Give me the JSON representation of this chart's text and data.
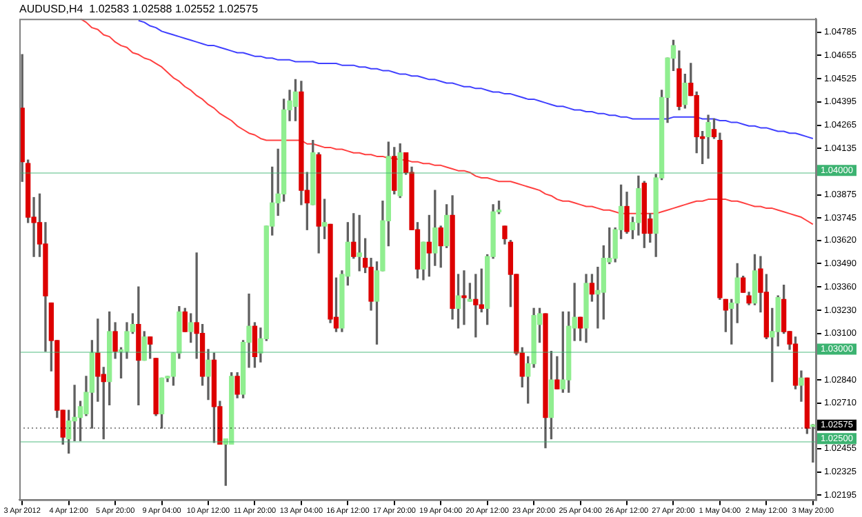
{
  "chart_data": {
    "type": "candlestick",
    "title": "AUDUSD,H4  1.02583 1.02588 1.02552 1.02575",
    "categories": [
      "3 Apr 2012",
      null,
      null,
      null,
      null,
      null,
      null,
      null,
      "4 Apr 12:00",
      null,
      null,
      null,
      null,
      null,
      null,
      null,
      "5 Apr 20:00",
      null,
      null,
      null,
      null,
      null,
      null,
      null,
      "9 Apr 04:00",
      null,
      null,
      null,
      null,
      null,
      null,
      null,
      "10 Apr 12:00",
      null,
      null,
      null,
      null,
      null,
      null,
      null,
      "11 Apr 20:00",
      null,
      null,
      null,
      null,
      null,
      null,
      null,
      "13 Apr 04:00",
      null,
      null,
      null,
      null,
      null,
      null,
      null,
      "16 Apr 12:00",
      null,
      null,
      null,
      null,
      null,
      null,
      null,
      "17 Apr 20:00",
      null,
      null,
      null,
      null,
      null,
      null,
      null,
      "19 Apr 04:00",
      null,
      null,
      null,
      null,
      null,
      null,
      null,
      "20 Apr 12:00",
      null,
      null,
      null,
      null,
      null,
      null,
      null,
      "23 Apr 20:00",
      null,
      null,
      null,
      null,
      null,
      null,
      null,
      "25 Apr 04:00",
      null,
      null,
      null,
      null,
      null,
      null,
      null,
      "26 Apr 12:00",
      null,
      null,
      null,
      null,
      null,
      null,
      null,
      "27 Apr 20:00",
      null,
      null,
      null,
      null,
      null,
      null,
      null,
      "1 May 04:00",
      null,
      null,
      null,
      null,
      null,
      null,
      null,
      "2 May 12:00",
      null,
      null,
      null,
      null,
      null,
      null,
      null,
      "3 May 20:00"
    ],
    "ohlc": [
      [
        1.0436,
        1.0466,
        1.0395,
        1.0406
      ],
      [
        1.0405,
        1.0407,
        1.0372,
        1.0375
      ],
      [
        1.0375,
        1.0386,
        1.0353,
        1.0372
      ],
      [
        1.0372,
        1.0388,
        1.0353,
        1.036
      ],
      [
        1.036,
        1.0372,
        1.03,
        1.0331
      ],
      [
        1.0327,
        1.0327,
        1.0289,
        1.0306
      ],
      [
        1.0306,
        1.0306,
        1.0263,
        1.0267
      ],
      [
        1.0267,
        1.0267,
        1.0248,
        1.0252
      ],
      [
        1.0251,
        1.0267,
        1.0243,
        1.0261
      ],
      [
        1.0261,
        1.0281,
        1.025,
        1.0263
      ],
      [
        1.0263,
        1.0272,
        1.025,
        1.0269
      ],
      [
        1.0265,
        1.0286,
        1.0264,
        1.0277
      ],
      [
        1.0277,
        1.0306,
        1.0257,
        1.0299
      ],
      [
        1.0299,
        1.0318,
        1.0272,
        1.0286
      ],
      [
        1.0287,
        1.0291,
        1.0251,
        1.0283
      ],
      [
        1.0283,
        1.0322,
        1.027,
        1.0311
      ],
      [
        1.0311,
        1.0316,
        1.0296,
        1.03
      ],
      [
        1.03,
        1.0302,
        1.0285,
        1.03
      ],
      [
        1.03,
        1.0316,
        1.0296,
        1.0311
      ],
      [
        1.0311,
        1.0321,
        1.031,
        1.0315
      ],
      [
        1.0315,
        1.0336,
        1.027,
        1.0295
      ],
      [
        1.0295,
        1.0311,
        1.0295,
        1.0308
      ],
      [
        1.0308,
        1.0308,
        1.0296,
        1.0304
      ],
      [
        1.0296,
        1.0296,
        1.0264,
        1.0265
      ],
      [
        1.0265,
        1.0285,
        1.0257,
        1.0285
      ],
      [
        1.0285,
        1.0286,
        1.0283,
        1.0286
      ],
      [
        1.0286,
        1.0299,
        1.0281,
        1.0299
      ],
      [
        1.0299,
        1.0325,
        1.0296,
        1.0322
      ],
      [
        1.0322,
        1.0324,
        1.0311,
        1.0311
      ],
      [
        1.0311,
        1.0321,
        1.0305,
        1.0316
      ],
      [
        1.0316,
        1.0355,
        1.0296,
        1.031
      ],
      [
        1.031,
        1.0315,
        1.0281,
        1.0286
      ],
      [
        1.0286,
        1.0301,
        1.0273,
        1.0295
      ],
      [
        1.0295,
        1.0299,
        1.0249,
        1.0269
      ],
      [
        1.0269,
        1.0272,
        1.0248,
        1.0248
      ],
      [
        1.0248,
        1.0251,
        1.0225,
        1.0251
      ],
      [
        1.0248,
        1.0288,
        1.0248,
        1.0286
      ],
      [
        1.0286,
        1.0288,
        1.0274,
        1.0276
      ],
      [
        1.0276,
        1.0306,
        1.0274,
        1.0305
      ],
      [
        1.0305,
        1.0332,
        1.0291,
        1.0314
      ],
      [
        1.0314,
        1.0316,
        1.0291,
        1.0297
      ],
      [
        1.0299,
        1.0313,
        1.0294,
        1.0307
      ],
      [
        1.0307,
        1.037,
        1.0306,
        1.037
      ],
      [
        1.037,
        1.0403,
        1.0365,
        1.0383
      ],
      [
        1.0383,
        1.0413,
        1.0376,
        1.0388
      ],
      [
        1.0388,
        1.0441,
        1.0384,
        1.0435
      ],
      [
        1.0435,
        1.0446,
        1.0429,
        1.044
      ],
      [
        1.0437,
        1.0452,
        1.0429,
        1.0445
      ],
      [
        1.0445,
        1.0451,
        1.0382,
        1.039
      ],
      [
        1.039,
        1.04,
        1.0368,
        1.0383
      ],
      [
        1.0382,
        1.0418,
        1.0382,
        1.0411
      ],
      [
        1.041,
        1.0411,
        1.0355,
        1.037
      ],
      [
        1.037,
        1.0385,
        1.0363,
        1.0372
      ],
      [
        1.0371,
        1.0371,
        1.0316,
        1.0318
      ],
      [
        1.0319,
        1.0341,
        1.0311,
        1.0313
      ],
      [
        1.0313,
        1.0345,
        1.0311,
        1.0343
      ],
      [
        1.0342,
        1.0372,
        1.0337,
        1.0361
      ],
      [
        1.0361,
        1.0377,
        1.0352,
        1.0353
      ],
      [
        1.0353,
        1.0376,
        1.0345,
        1.0355
      ],
      [
        1.0352,
        1.0363,
        1.0344,
        1.0347
      ],
      [
        1.0347,
        1.0352,
        1.0323,
        1.0328
      ],
      [
        1.0328,
        1.035,
        1.0304,
        1.0345
      ],
      [
        1.0345,
        1.0384,
        1.0345,
        1.0373
      ],
      [
        1.0373,
        1.0417,
        1.0359,
        1.0409
      ],
      [
        1.0409,
        1.0414,
        1.0388,
        1.039
      ],
      [
        1.0387,
        1.0416,
        1.0386,
        1.0411
      ],
      [
        1.0411,
        1.0411,
        1.0399,
        1.04
      ],
      [
        1.04,
        1.0403,
        1.0368,
        1.0368
      ],
      [
        1.0368,
        1.0372,
        1.0341,
        1.0346
      ],
      [
        1.0346,
        1.0361,
        1.034,
        1.0361
      ],
      [
        1.0361,
        1.0376,
        1.0342,
        1.0355
      ],
      [
        1.0355,
        1.039,
        1.0348,
        1.0369
      ],
      [
        1.0369,
        1.037,
        1.0347,
        1.0359
      ],
      [
        1.0359,
        1.0382,
        1.0358,
        1.0376
      ],
      [
        1.0376,
        1.0387,
        1.0318,
        1.0324
      ],
      [
        1.0324,
        1.0343,
        1.0313,
        1.0331
      ],
      [
        1.0331,
        1.0345,
        1.0315,
        1.033
      ],
      [
        1.0328,
        1.0338,
        1.0328,
        1.0329
      ],
      [
        1.0329,
        1.0343,
        1.0308,
        1.0326
      ],
      [
        1.0326,
        1.0346,
        1.0322,
        1.0324
      ],
      [
        1.0324,
        1.0354,
        1.0315,
        1.0353
      ],
      [
        1.0353,
        1.0382,
        1.0352,
        1.0378
      ],
      [
        1.0378,
        1.0384,
        1.0377,
        1.0379
      ],
      [
        1.037,
        1.037,
        1.036,
        1.0363
      ],
      [
        1.0361,
        1.0362,
        1.0325,
        1.0343
      ],
      [
        1.0343,
        1.0343,
        1.0298,
        1.0299
      ],
      [
        1.0299,
        1.0302,
        1.028,
        1.0286
      ],
      [
        1.0286,
        1.0297,
        1.0271,
        1.0293
      ],
      [
        1.0293,
        1.0324,
        1.0291,
        1.032
      ],
      [
        1.0315,
        1.0324,
        1.0305,
        1.0321
      ],
      [
        1.0321,
        1.0321,
        1.0246,
        1.0263
      ],
      [
        1.0263,
        1.03,
        1.0251,
        1.0284
      ],
      [
        1.0284,
        1.0297,
        1.0279,
        1.0279
      ],
      [
        1.0279,
        1.0322,
        1.0277,
        1.0284
      ],
      [
        1.0284,
        1.0322,
        1.0277,
        1.0314
      ],
      [
        1.0313,
        1.0338,
        1.0306,
        1.0319
      ],
      [
        1.0319,
        1.0319,
        1.0306,
        1.0313
      ],
      [
        1.0313,
        1.0343,
        1.0305,
        1.0338
      ],
      [
        1.0338,
        1.0343,
        1.0328,
        1.0332
      ],
      [
        1.0332,
        1.0347,
        1.0313,
        1.0334
      ],
      [
        1.0333,
        1.0359,
        1.0318,
        1.0352
      ],
      [
        1.035,
        1.0369,
        1.0349,
        1.0352
      ],
      [
        1.0352,
        1.0369,
        1.035,
        1.0368
      ],
      [
        1.0368,
        1.0393,
        1.0363,
        1.0381
      ],
      [
        1.0381,
        1.0389,
        1.0366,
        1.0367
      ],
      [
        1.0368,
        1.0375,
        1.0363,
        1.0372
      ],
      [
        1.0372,
        1.0398,
        1.0365,
        1.0391
      ],
      [
        1.0394,
        1.0395,
        1.0358,
        1.0366
      ],
      [
        1.0374,
        1.0377,
        1.0361,
        1.0366
      ],
      [
        1.0366,
        1.0399,
        1.0353,
        1.0397
      ],
      [
        1.0397,
        1.0446,
        1.0396,
        1.0442
      ],
      [
        1.0442,
        1.0464,
        1.0428,
        1.0464
      ],
      [
        1.0464,
        1.0474,
        1.0457,
        1.0471
      ],
      [
        1.0458,
        1.0468,
        1.0435,
        1.0437
      ],
      [
        1.0438,
        1.0455,
        1.0436,
        1.045
      ],
      [
        1.045,
        1.0461,
        1.0443,
        1.0443
      ],
      [
        1.0443,
        1.0445,
        1.0411,
        1.042
      ],
      [
        1.042,
        1.0423,
        1.0405,
        1.0419
      ],
      [
        1.042,
        1.0432,
        1.0408,
        1.0428
      ],
      [
        1.0424,
        1.043,
        1.0419,
        1.042
      ],
      [
        1.0418,
        1.0422,
        1.0329,
        1.033
      ],
      [
        1.0329,
        1.0329,
        1.0311,
        1.0323
      ],
      [
        1.0324,
        1.0329,
        1.0304,
        1.0327
      ],
      [
        1.0327,
        1.0349,
        1.0316,
        1.0341
      ],
      [
        1.0341,
        1.0342,
        1.0333,
        1.0333
      ],
      [
        1.0331,
        1.0333,
        1.0326,
        1.0327
      ],
      [
        1.0327,
        1.0354,
        1.0326,
        1.0345
      ],
      [
        1.0346,
        1.0353,
        1.0322,
        1.0333
      ],
      [
        1.0333,
        1.0343,
        1.0307,
        1.0308
      ],
      [
        1.0308,
        1.0324,
        1.0283,
        1.0311
      ],
      [
        1.0311,
        1.0331,
        1.0303,
        1.033
      ],
      [
        1.0329,
        1.0337,
        1.031,
        1.0311
      ],
      [
        1.0311,
        1.0311,
        1.0301,
        1.0304
      ],
      [
        1.0304,
        1.0308,
        1.0279,
        1.0281
      ],
      [
        1.0281,
        1.0289,
        1.0272,
        1.0285
      ],
      [
        1.0285,
        1.0285,
        1.0254,
        1.0257
      ],
      [
        1.0258,
        1.0259,
        1.0238,
        1.0258
      ]
    ],
    "colors": [
      "#dd0000",
      "#dd0000",
      "#dd0000",
      "#dd0000",
      "#dd0000",
      "#dd0000",
      "#dd0000",
      "#dd0000",
      "#90ee90",
      "#90ee90",
      "#90ee90",
      "#90ee90",
      "#90ee90",
      "#dd0000",
      "#dd0000",
      "#90ee90",
      "#dd0000",
      "#90ee90",
      "#90ee90",
      "#90ee90",
      "#dd0000",
      "#90ee90",
      "#dd0000",
      "#dd0000",
      "#90ee90",
      "#90ee90",
      "#90ee90",
      "#90ee90",
      "#dd0000",
      "#90ee90",
      "#dd0000",
      "#dd0000",
      "#90ee90",
      "#dd0000",
      "#dd0000",
      "#90ee90",
      "#90ee90",
      "#dd0000",
      "#90ee90",
      "#90ee90",
      "#dd0000",
      "#90ee90",
      "#90ee90",
      "#90ee90",
      "#90ee90",
      "#90ee90",
      "#90ee90",
      "#90ee90",
      "#dd0000",
      "#dd0000",
      "#90ee90",
      "#dd0000",
      "#90ee90",
      "#dd0000",
      "#dd0000",
      "#90ee90",
      "#90ee90",
      "#dd0000",
      "#90ee90",
      "#dd0000",
      "#dd0000",
      "#90ee90",
      "#90ee90",
      "#90ee90",
      "#dd0000",
      "#90ee90",
      "#dd0000",
      "#dd0000",
      "#dd0000",
      "#90ee90",
      "#dd0000",
      "#90ee90",
      "#dd0000",
      "#90ee90",
      "#dd0000",
      "#90ee90",
      "#dd0000",
      "#90ee90",
      "#dd0000",
      "#dd0000",
      "#90ee90",
      "#90ee90",
      "#90ee90",
      "#dd0000",
      "#dd0000",
      "#dd0000",
      "#dd0000",
      "#90ee90",
      "#90ee90",
      "#90ee90",
      "#dd0000",
      "#90ee90",
      "#dd0000",
      "#90ee90",
      "#90ee90",
      "#90ee90",
      "#dd0000",
      "#90ee90",
      "#dd0000",
      "#90ee90",
      "#90ee90",
      "#90ee90",
      "#90ee90",
      "#90ee90",
      "#dd0000",
      "#90ee90",
      "#90ee90",
      "#dd0000",
      "#dd0000",
      "#90ee90",
      "#90ee90",
      "#90ee90",
      "#90ee90",
      "#dd0000",
      "#90ee90",
      "#dd0000",
      "#dd0000",
      "#dd0000",
      "#90ee90",
      "#dd0000",
      "#dd0000",
      "#dd0000",
      "#90ee90",
      "#90ee90",
      "#dd0000",
      "#dd0000",
      "#90ee90",
      "#dd0000",
      "#dd0000",
      "#90ee90",
      "#90ee90",
      "#dd0000",
      "#dd0000",
      "#dd0000",
      "#90ee90",
      "#dd0000",
      "#90ee90"
    ],
    "series": [
      {
        "type": "line",
        "color": "#4040ff",
        "values": [
          null,
          null,
          null,
          null,
          null,
          null,
          null,
          null,
          null,
          null,
          null,
          null,
          null,
          null,
          null,
          null,
          null,
          null,
          null,
          null,
          1.0485,
          1.0484,
          1.0482,
          1.0481,
          1.0479,
          1.0478,
          1.0477,
          1.0476,
          1.0475,
          1.0474,
          1.0473,
          1.0472,
          1.0471,
          1.0471,
          1.047,
          1.0469,
          1.0468,
          1.0467,
          1.0467,
          1.0466,
          1.0465,
          1.0465,
          1.0464,
          1.0464,
          1.0463,
          1.0463,
          1.0463,
          1.0462,
          1.0462,
          1.0462,
          1.0462,
          1.0461,
          1.0461,
          1.0461,
          1.0461,
          1.046,
          1.046,
          1.046,
          1.0459,
          1.0459,
          1.0458,
          1.0458,
          1.0457,
          1.0457,
          1.0456,
          1.0455,
          1.0455,
          1.0454,
          1.0454,
          1.0453,
          1.0452,
          1.0452,
          1.0451,
          1.045,
          1.045,
          1.0449,
          1.0448,
          1.0448,
          1.0447,
          1.0447,
          1.0446,
          1.0445,
          1.0445,
          1.0444,
          1.0444,
          1.0443,
          1.0442,
          1.0441,
          1.0441,
          1.044,
          1.0439,
          1.0438,
          1.0437,
          1.0437,
          1.0436,
          1.0435,
          1.0435,
          1.0434,
          1.0434,
          1.0433,
          1.0433,
          1.0432,
          1.0432,
          1.0431,
          1.0431,
          1.043,
          1.043,
          1.043,
          1.043,
          1.043,
          1.043,
          1.043,
          1.0431,
          1.0431,
          1.0431,
          1.0431,
          1.0431,
          1.043,
          1.043,
          1.043,
          1.0429,
          1.0429,
          1.0428,
          1.0428,
          1.0427,
          1.0426,
          1.0426,
          1.0425,
          1.0425,
          1.0424,
          1.0423,
          1.0423,
          1.0422,
          1.0422,
          1.0421,
          1.042,
          1.0419
        ]
      },
      {
        "type": "line",
        "color": "#ff4040",
        "values": [
          null,
          null,
          null,
          null,
          null,
          null,
          null,
          null,
          null,
          null,
          1.0486,
          1.0484,
          1.0481,
          1.048,
          1.0477,
          1.0476,
          1.0473,
          1.0471,
          1.047,
          1.0467,
          1.0466,
          1.0464,
          1.0463,
          1.0461,
          1.0459,
          1.0456,
          1.0453,
          1.0451,
          1.0448,
          1.0446,
          1.0443,
          1.0441,
          1.0438,
          1.0436,
          1.0433,
          1.0431,
          1.0429,
          1.0426,
          1.0424,
          1.0422,
          1.0421,
          1.0419,
          1.0418,
          1.0418,
          1.0418,
          1.0418,
          1.0418,
          1.0418,
          1.0418,
          1.0416,
          1.0416,
          1.0415,
          1.0414,
          1.0414,
          1.0413,
          1.0413,
          1.0412,
          1.0411,
          1.0411,
          1.041,
          1.041,
          1.0409,
          1.0409,
          1.0408,
          1.0408,
          1.0407,
          1.0407,
          1.0406,
          1.0406,
          1.0405,
          1.0405,
          1.0404,
          1.0404,
          1.0403,
          1.0402,
          1.0401,
          1.0401,
          1.04,
          1.0398,
          1.0397,
          1.0397,
          1.0396,
          1.0395,
          1.0395,
          1.0395,
          1.0394,
          1.0393,
          1.0392,
          1.0391,
          1.039,
          1.0388,
          1.0387,
          1.0385,
          1.0384,
          1.0384,
          1.0383,
          1.0382,
          1.0381,
          1.0381,
          1.038,
          1.0379,
          1.0379,
          1.0378,
          1.0377,
          1.0377,
          1.0377,
          1.0377,
          1.0377,
          1.0377,
          1.0377,
          1.0378,
          1.0379,
          1.038,
          1.0381,
          1.0382,
          1.0383,
          1.0384,
          1.0384,
          1.0385,
          1.0385,
          1.0385,
          1.0385,
          1.0384,
          1.0384,
          1.0383,
          1.0382,
          1.0381,
          1.0381,
          1.038,
          1.038,
          1.0379,
          1.0378,
          1.0377,
          1.0376,
          1.0375,
          1.0373,
          1.0371
        ]
      }
    ],
    "ylim": [
      1.0217,
      1.0486
    ],
    "yticks": [
      1.04785,
      1.04655,
      1.04525,
      1.04395,
      1.04265,
      1.04135,
      1.03875,
      1.03745,
      {
        "value": 1.0362,
        "label": "1.03620"
      },
      {
        "value": 1.0349,
        "label": "1.03490"
      },
      {
        "value": 1.0336,
        "label": "1.03360"
      },
      {
        "value": 1.0323,
        "label": "1.03230"
      },
      {
        "value": 1.031,
        "label": "1.03100"
      },
      {
        "value": 1.0284,
        "label": "1.02840"
      },
      {
        "value": 1.0271,
        "label": "1.02710"
      },
      1.02455,
      1.02325,
      1.02195
    ],
    "ref_lines": [
      {
        "axis": "y",
        "value": 1.04,
        "label": "1.04000",
        "color": "#3cb371",
        "line_style": "solid"
      },
      {
        "axis": "y",
        "value": 1.03,
        "label": "1.03000",
        "color": "#3cb371",
        "line_style": "solid"
      },
      {
        "axis": "y",
        "value": 1.025,
        "label": "1.02500",
        "color": "#3cb371",
        "line_style": "solid"
      },
      {
        "axis": "y",
        "value": 1.02575,
        "label": "1.02575",
        "color": "#000000",
        "line_style": "dotted"
      }
    ]
  }
}
